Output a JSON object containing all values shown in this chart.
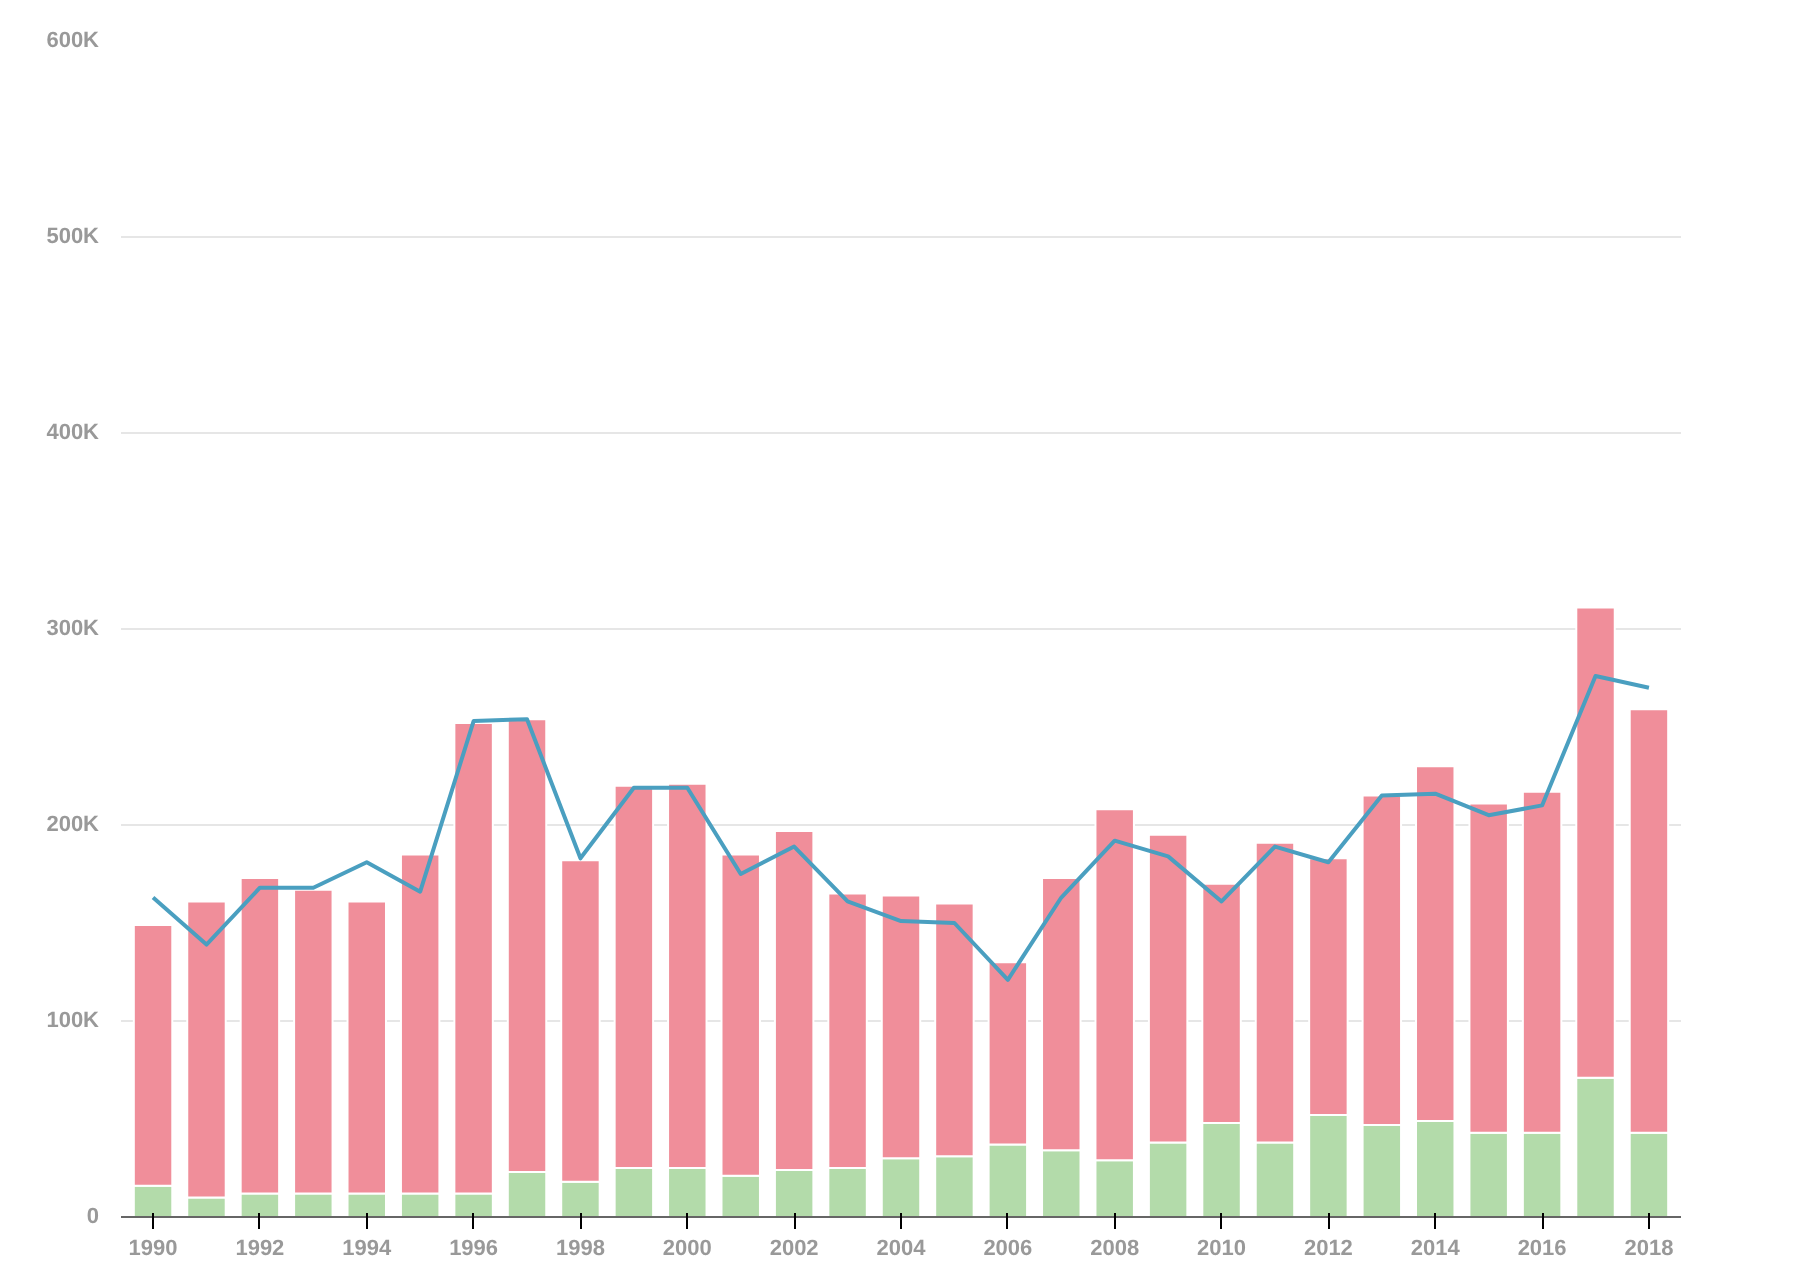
{
  "chart_data": {
    "type": "bar",
    "stacked": true,
    "x": [
      1990,
      1991,
      1992,
      1993,
      1994,
      1995,
      1996,
      1997,
      1998,
      1999,
      2000,
      2001,
      2002,
      2003,
      2004,
      2005,
      2006,
      2007,
      2008,
      2009,
      2010,
      2011,
      2012,
      2013,
      2014,
      2015,
      2016,
      2017,
      2018
    ],
    "series": [
      {
        "color": "#b3dbaa",
        "values": [
          16,
          10,
          12,
          12,
          12,
          12,
          12,
          23,
          18,
          25,
          25,
          21,
          24,
          25,
          30,
          31,
          37,
          34,
          29,
          38,
          48,
          38,
          52,
          47,
          49,
          43,
          43,
          71,
          43
        ]
      },
      {
        "color": "#f08e9a",
        "values": [
          133,
          151,
          161,
          155,
          149,
          173,
          240,
          231,
          164,
          195,
          196,
          164,
          173,
          140,
          134,
          129,
          93,
          139,
          179,
          157,
          122,
          153,
          131,
          168,
          181,
          168,
          174,
          240,
          216
        ]
      },
      {
        "type": "line",
        "color": "#4a9fc0",
        "values": [
          163,
          139,
          168,
          168,
          181,
          166,
          253,
          254,
          183,
          219,
          219,
          175,
          189,
          161,
          151,
          150,
          121,
          163,
          192,
          184,
          161,
          189,
          181,
          215,
          216,
          205,
          210,
          276,
          270
        ]
      }
    ],
    "xlim": [
      1989.4,
      2018.6
    ],
    "xticks": [
      1990,
      1992,
      1994,
      1996,
      1998,
      2000,
      2002,
      2004,
      2006,
      2008,
      2010,
      2012,
      2014,
      2016,
      2018
    ],
    "ylim": [
      0,
      600
    ],
    "yticks": [
      0,
      {
        "value": 100,
        "label": "100K"
      },
      {
        "value": 200,
        "label": "200K"
      },
      {
        "value": 300,
        "label": "300K"
      },
      {
        "value": 400,
        "label": "400K"
      },
      {
        "value": 500,
        "label": "500K"
      },
      {
        "value": 600,
        "label": "600K"
      }
    ],
    "grid": "y"
  }
}
